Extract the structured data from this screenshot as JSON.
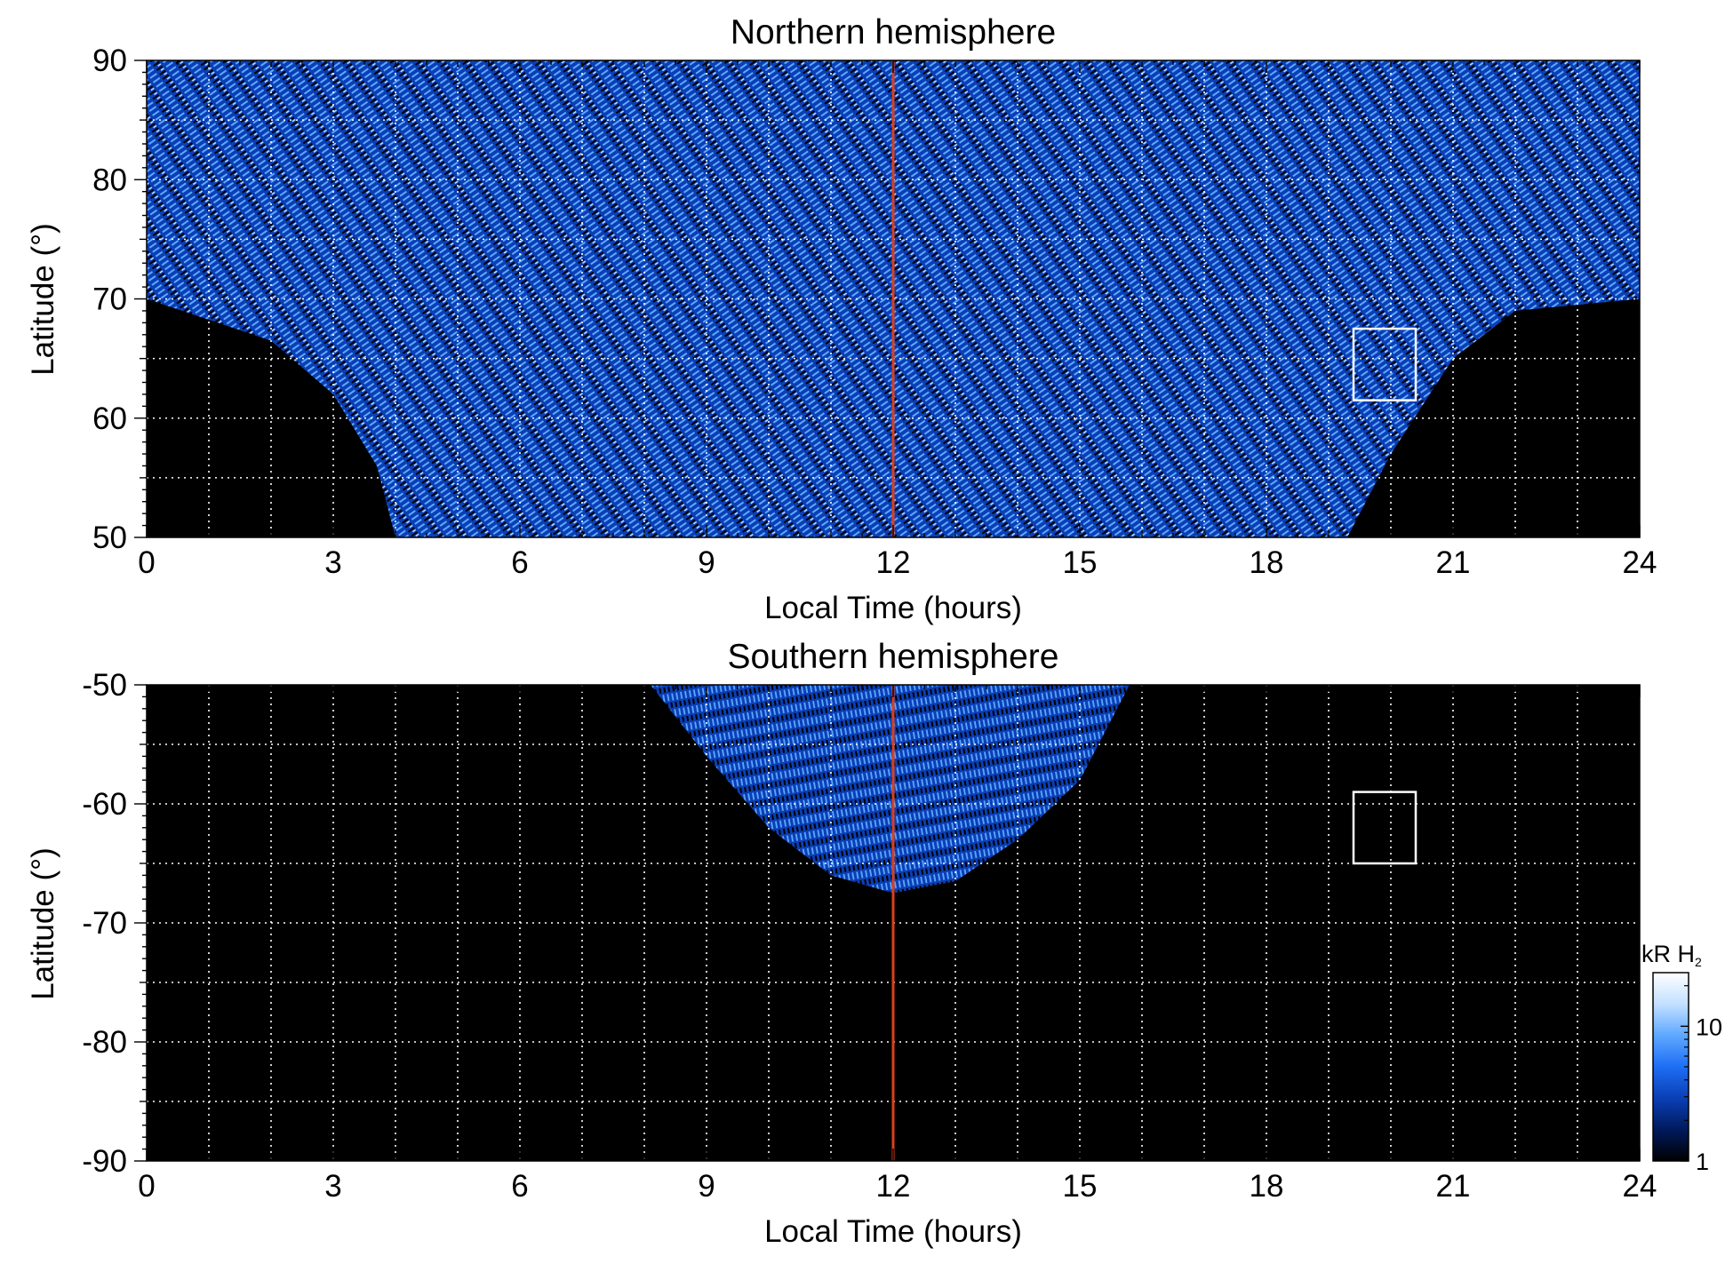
{
  "chart_data": [
    {
      "type": "heatmap",
      "title": "Northern hemisphere",
      "xlabel": "Local Time (hours)",
      "ylabel": "Latitude (°)",
      "xlim": [
        0,
        24
      ],
      "ylim": [
        50,
        90
      ],
      "xticks": [
        "0",
        "3",
        "6",
        "9",
        "12",
        "15",
        "18",
        "21",
        "24"
      ],
      "yticks": [
        "50",
        "60",
        "70",
        "80",
        "90"
      ],
      "grid": true,
      "marker_line": {
        "x": 12,
        "color": "#d9401e"
      },
      "box": {
        "x0": 19.4,
        "x1": 20.4,
        "y0": 61.5,
        "y1": 67.5,
        "color": "#ffffff"
      },
      "coverage_edge": [
        [
          0,
          70
        ],
        [
          2,
          66.5
        ],
        [
          3,
          62
        ],
        [
          3.7,
          56
        ],
        [
          4,
          50
        ],
        [
          19.3,
          50
        ],
        [
          20,
          57
        ],
        [
          21,
          65
        ],
        [
          22,
          69
        ],
        [
          24,
          70
        ]
      ]
    },
    {
      "type": "heatmap",
      "title": "Southern hemisphere",
      "xlabel": "Local Time (hours)",
      "ylabel": "Latitude (°)",
      "xlim": [
        0,
        24
      ],
      "ylim": [
        -90,
        -50
      ],
      "xticks": [
        "0",
        "3",
        "6",
        "9",
        "12",
        "15",
        "18",
        "21",
        "24"
      ],
      "yticks": [
        "-90",
        "-80",
        "-70",
        "-60",
        "-50"
      ],
      "grid": true,
      "marker_line": {
        "x": 12,
        "color": "#d9401e"
      },
      "box": {
        "x0": 19.4,
        "x1": 20.4,
        "y0": -65,
        "y1": -59,
        "color": "#ffffff"
      },
      "coverage_edge": [
        [
          8.1,
          -50
        ],
        [
          9,
          -56
        ],
        [
          10,
          -62
        ],
        [
          11,
          -66
        ],
        [
          12,
          -67.5
        ],
        [
          13,
          -66.5
        ],
        [
          14,
          -63
        ],
        [
          15,
          -58
        ],
        [
          15.8,
          -50
        ]
      ]
    }
  ],
  "colorbar": {
    "title": "kR H",
    "subscript": "2",
    "ticks": [
      {
        "label": "10",
        "value": 10
      },
      {
        "label": "1",
        "value": 1
      }
    ],
    "range": [
      1,
      25
    ],
    "scale": "log",
    "colors": [
      "#000000",
      "#001a5c",
      "#0a3fb5",
      "#1e6ef5",
      "#5ea8ff",
      "#c2e0ff",
      "#ffffff"
    ]
  }
}
